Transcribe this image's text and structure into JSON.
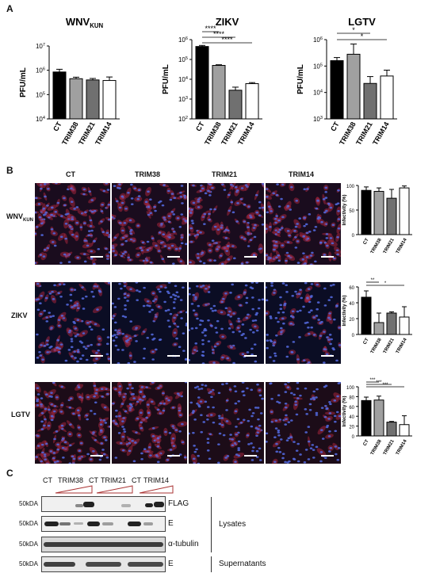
{
  "panels": {
    "a": "A",
    "b": "B",
    "c": "C"
  },
  "chart_data": [
    {
      "type": "bar",
      "title": "WNVKUN",
      "title_main": "WNV",
      "title_sub": "KUN",
      "ylabel": "PFU/mL",
      "yscale": "log",
      "ylim": [
        10000,
        10000000
      ],
      "yticks": [
        "10^4",
        "10^5",
        "10^6",
        "10^7"
      ],
      "categories": [
        "CT",
        "TRIM38",
        "TRIM21",
        "TRIM14"
      ],
      "values": [
        850000,
        450000,
        400000,
        380000
      ],
      "errors": [
        250000,
        70000,
        60000,
        150000
      ],
      "colors": [
        "#000000",
        "#a0a0a0",
        "#707070",
        "#ffffff"
      ],
      "sig": []
    },
    {
      "type": "bar",
      "title": "ZIKV",
      "ylabel": "PFU/mL",
      "yscale": "log",
      "ylim": [
        100,
        1000000
      ],
      "yticks": [
        "10^2",
        "10^3",
        "10^4",
        "10^5",
        "10^6"
      ],
      "categories": [
        "CT",
        "TRIM38",
        "TRIM21",
        "TRIM14"
      ],
      "values": [
        450000,
        50000,
        2800,
        6000
      ],
      "errors": [
        60000,
        4000,
        1200,
        800
      ],
      "colors": [
        "#000000",
        "#a0a0a0",
        "#707070",
        "#ffffff"
      ],
      "sig": [
        {
          "from": 0,
          "to": 1,
          "label": "****"
        },
        {
          "from": 0,
          "to": 2,
          "label": "****"
        },
        {
          "from": 0,
          "to": 3,
          "label": "****"
        }
      ]
    },
    {
      "type": "bar",
      "title": "LGTV",
      "ylabel": "PFU/mL",
      "yscale": "log",
      "ylim": [
        1000,
        1000000
      ],
      "yticks": [
        "10^3",
        "10^4",
        "10^5",
        "10^6"
      ],
      "categories": [
        "CT",
        "TRIM38",
        "TRIM21",
        "TRIM14"
      ],
      "values": [
        160000,
        280000,
        22000,
        42000
      ],
      "errors": [
        50000,
        400000,
        18000,
        28000
      ],
      "colors": [
        "#000000",
        "#a0a0a0",
        "#707070",
        "#ffffff"
      ],
      "sig": [
        {
          "from": 0,
          "to": 2,
          "label": "*"
        },
        {
          "from": 0,
          "to": 3,
          "label": "*"
        }
      ]
    },
    {
      "type": "bar",
      "ylabel": "Infectivity (%)",
      "ylim": [
        0,
        100
      ],
      "yticks": [
        "0",
        "50",
        "100"
      ],
      "categories": [
        "CT",
        "TRIM38",
        "TRIM21",
        "TRIM14"
      ],
      "values": [
        90,
        88,
        74,
        95
      ],
      "errors": [
        7,
        7,
        18,
        4
      ],
      "colors": [
        "#000000",
        "#a0a0a0",
        "#707070",
        "#ffffff"
      ],
      "sig": []
    },
    {
      "type": "bar",
      "ylabel": "Infectivity (%)",
      "ylim": [
        0,
        60
      ],
      "yticks": [
        "0",
        "20",
        "40",
        "60"
      ],
      "categories": [
        "CT",
        "TRIM38",
        "TRIM21",
        "TRIM14"
      ],
      "values": [
        47,
        15,
        27,
        22
      ],
      "errors": [
        8,
        12,
        1.5,
        13
      ],
      "colors": [
        "#000000",
        "#a0a0a0",
        "#707070",
        "#ffffff"
      ],
      "sig": [
        {
          "from": 0,
          "to": 1,
          "label": "**"
        },
        {
          "from": 0,
          "to": 3,
          "label": "*"
        }
      ]
    },
    {
      "type": "bar",
      "ylabel": "Infectivity (%)",
      "ylim": [
        0,
        100
      ],
      "yticks": [
        "0",
        "20",
        "40",
        "60",
        "80",
        "100"
      ],
      "categories": [
        "CT",
        "TRIM38",
        "TRIM21",
        "TRIM14"
      ],
      "values": [
        72,
        73,
        28,
        23
      ],
      "errors": [
        7,
        8,
        1.5,
        18
      ],
      "colors": [
        "#000000",
        "#a0a0a0",
        "#707070",
        "#ffffff"
      ],
      "sig": [
        {
          "from": 0,
          "to": 1,
          "label": "***"
        },
        {
          "from": 0,
          "to": 2,
          "label": "***"
        },
        {
          "from": 0,
          "to": 3,
          "label": "***"
        }
      ]
    }
  ],
  "micrographs": {
    "columns": [
      "CT",
      "TRIM38",
      "TRIM21",
      "TRIM14"
    ],
    "rows": [
      {
        "label_main": "WNV",
        "label_sub": "KUN"
      },
      {
        "label_main": "ZIKV",
        "label_sub": ""
      },
      {
        "label_main": "LGTV",
        "label_sub": ""
      }
    ]
  },
  "blot": {
    "lanes": [
      "CT",
      "TRIM38",
      "CT",
      "TRIM21",
      "CT",
      "TRIM14"
    ],
    "marker": "50kDA",
    "rows": [
      {
        "target": "FLAG"
      },
      {
        "target": "E"
      },
      {
        "target": "α-tubulin"
      },
      {
        "target": "E"
      }
    ],
    "groups": [
      "Lysates",
      "Supernatants"
    ]
  }
}
